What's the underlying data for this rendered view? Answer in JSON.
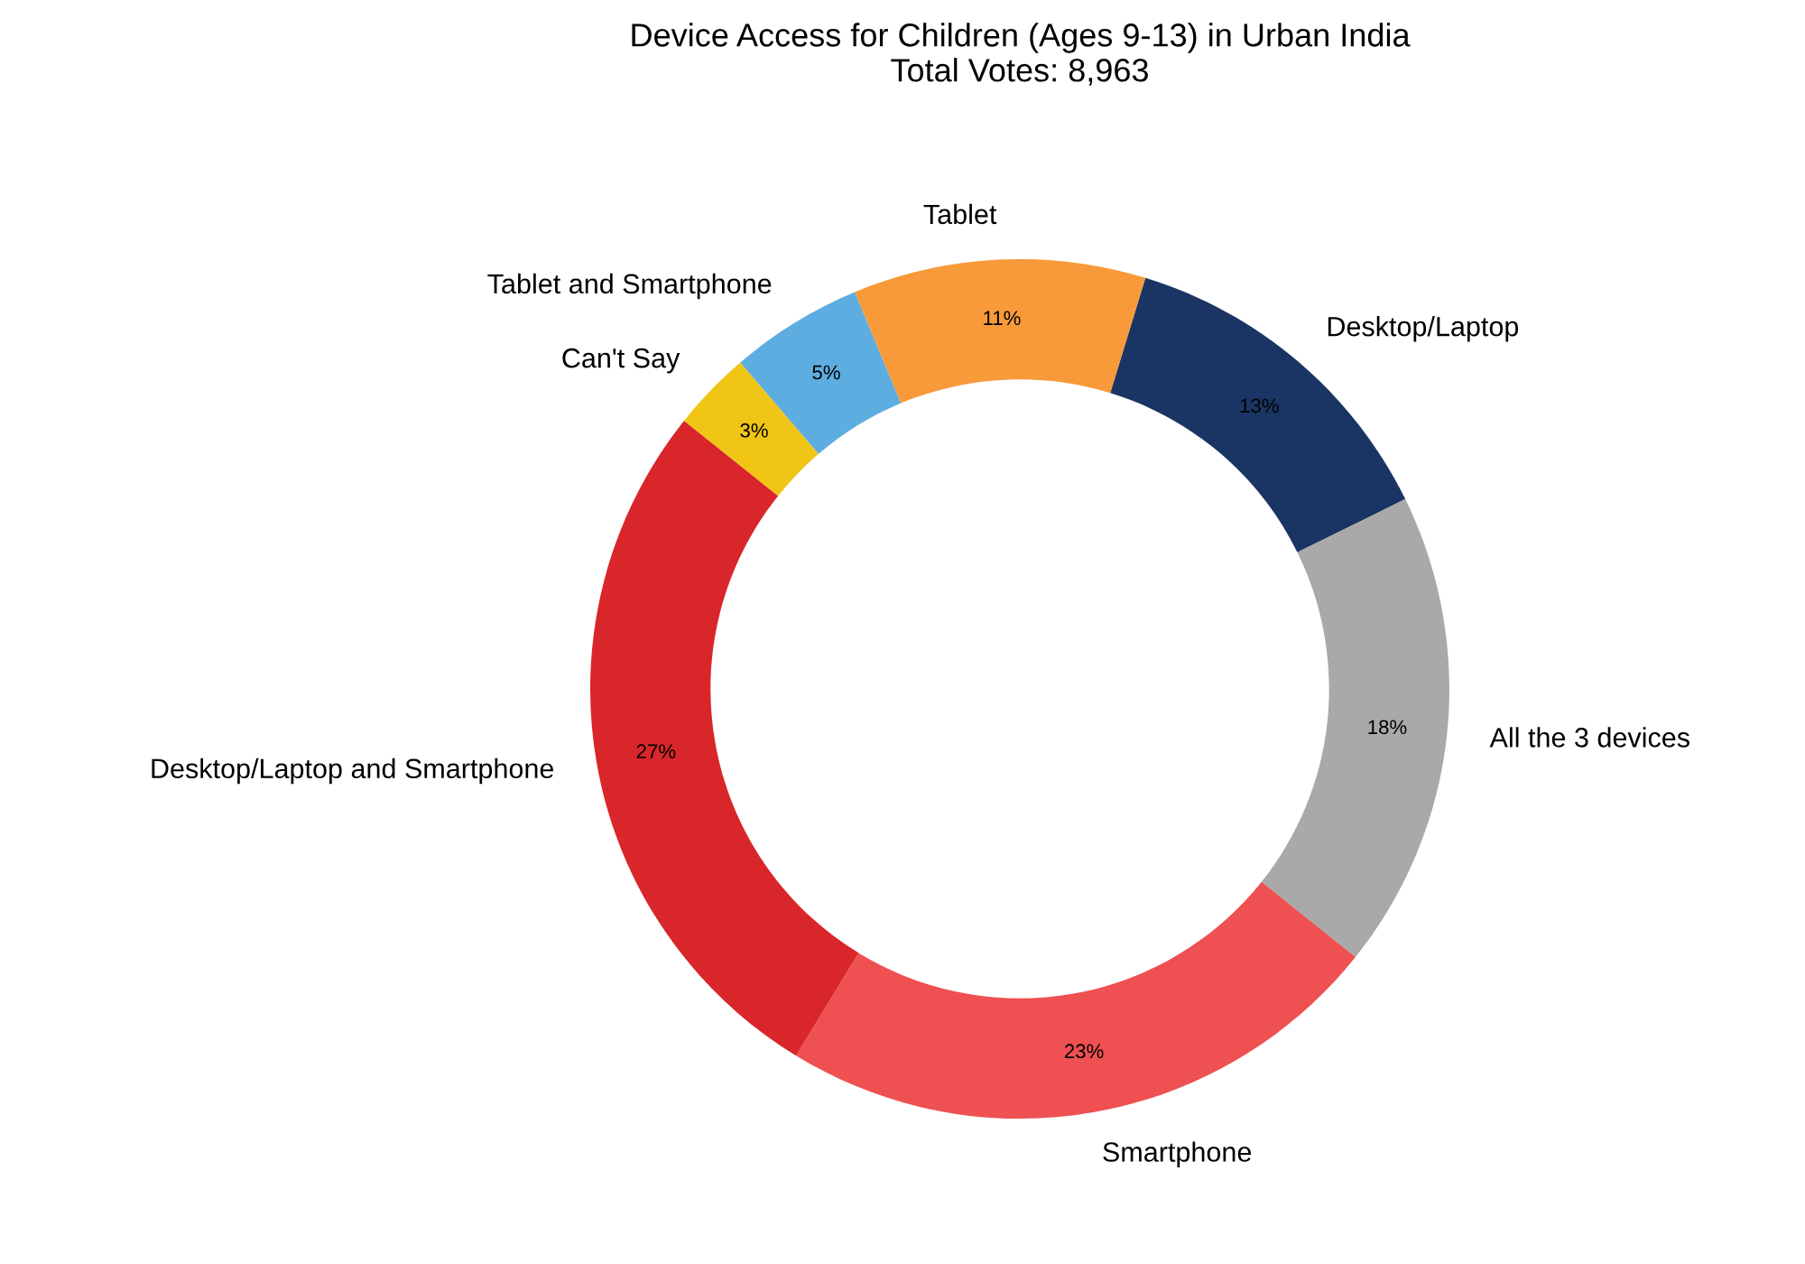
{
  "chart_data": {
    "type": "donut",
    "title": "Device Access for Children (Ages 9-13) in Urban India\nTotal Votes: 8,963",
    "categories": [
      "Desktop/Laptop",
      "All the 3 devices",
      "Smartphone",
      "Desktop/Laptop and Smartphone",
      "Can't Say",
      "Tablet and Smartphone",
      "Tablet"
    ],
    "values": [
      13,
      18,
      23,
      27,
      3,
      5,
      11
    ],
    "colors": [
      "#1a3564",
      "#a9a9a9",
      "#ef5051",
      "#d9262a",
      "#f1c515",
      "#5dade0",
      "#f89a3a"
    ],
    "value_labels": [
      "13%",
      "18%",
      "23%",
      "27%",
      "3%",
      "5%",
      "11%"
    ],
    "legend": false
  }
}
